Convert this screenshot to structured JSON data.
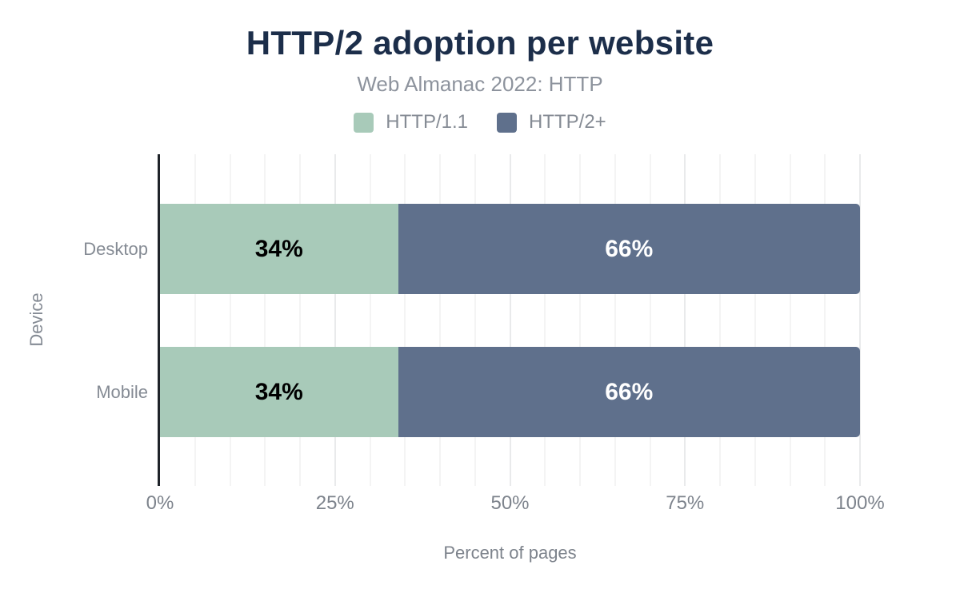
{
  "chart_data": {
    "type": "bar",
    "orientation": "horizontal",
    "stacked": true,
    "title": "HTTP/2 adoption per website",
    "subtitle": "Web Almanac 2022: HTTP",
    "xlabel": "Percent of pages",
    "ylabel": "Device",
    "categories": [
      "Desktop",
      "Mobile"
    ],
    "series": [
      {
        "name": "HTTP/1.1",
        "color": "#a8cab9",
        "label_color": "#000000",
        "values": [
          34,
          34
        ]
      },
      {
        "name": "HTTP/2+",
        "color": "#5f708c",
        "label_color": "#ffffff",
        "values": [
          66,
          66
        ]
      }
    ],
    "value_suffix": "%",
    "xlim": [
      0,
      100
    ],
    "xticks": [
      {
        "value": 0,
        "label": "0%"
      },
      {
        "value": 25,
        "label": "25%"
      },
      {
        "value": 50,
        "label": "50%"
      },
      {
        "value": 75,
        "label": "75%"
      },
      {
        "value": 100,
        "label": "100%"
      }
    ],
    "grid": {
      "minor_step": 5,
      "major_step": 25
    },
    "legend_position": "top",
    "grid_on": true
  },
  "colors": {
    "background": "#ffffff",
    "title": "#1c2e4a",
    "subtitle": "#8d939d",
    "text_gray": "#858b94",
    "axis_text": "#7d838c",
    "axis_line": "#1f2329",
    "grid_minor": "#f4f4f4",
    "grid_major": "#e9eaeb"
  }
}
